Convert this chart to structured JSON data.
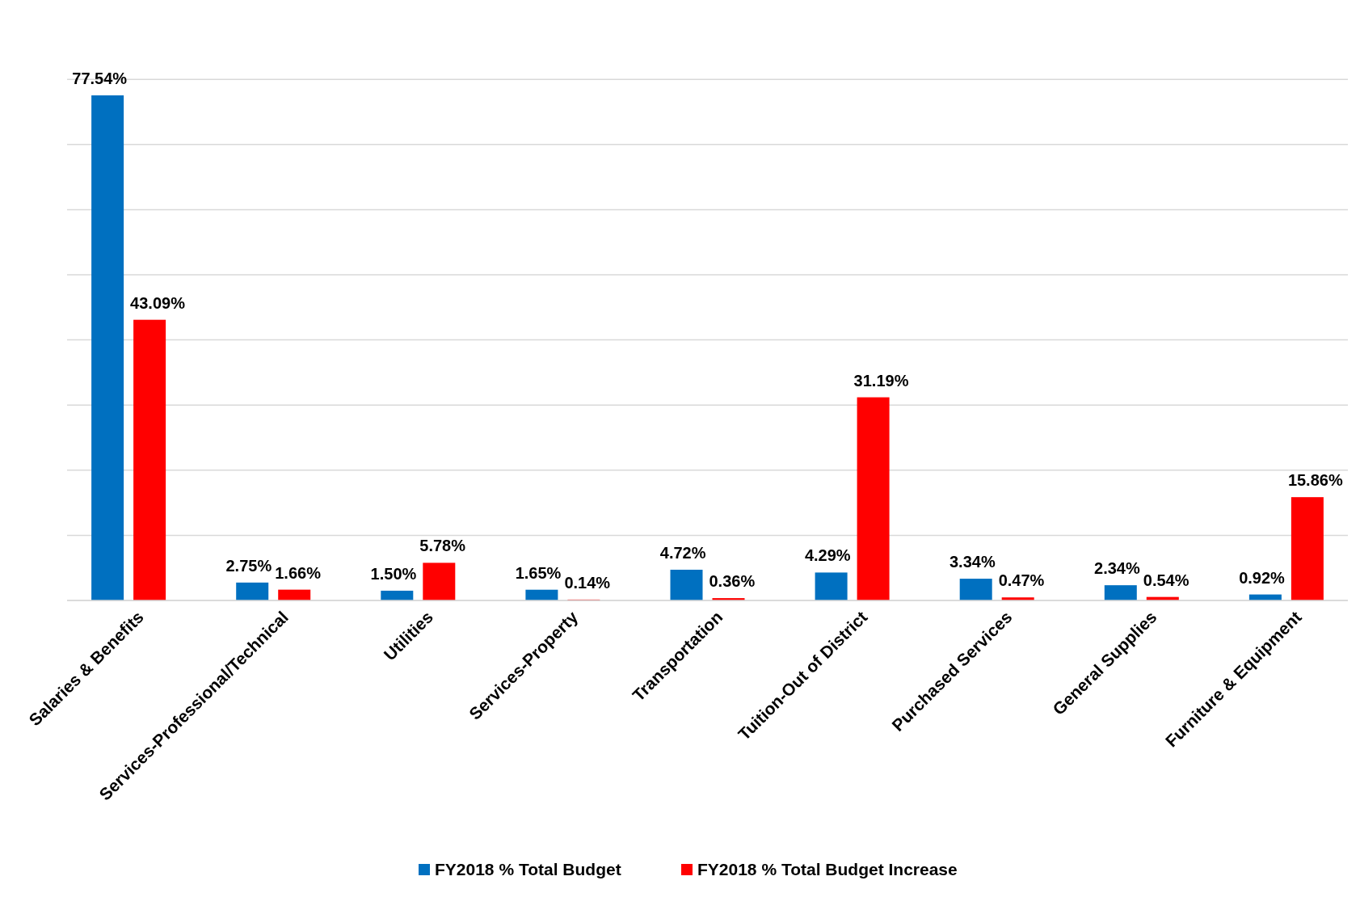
{
  "chart_data": {
    "type": "bar",
    "categories": [
      "Salaries & Benefits",
      "Services-Professional/Technical",
      "Utilities",
      "Services-Property",
      "Transportation",
      "Tuition-Out of District",
      "Purchased Services",
      "General Supplies",
      "Furniture & Equipment"
    ],
    "series": [
      {
        "name": "FY2018 % Total Budget",
        "color": "#0070c0",
        "values": [
          77.54,
          2.75,
          1.5,
          1.65,
          4.72,
          4.29,
          3.34,
          2.34,
          0.92
        ],
        "value_labels": [
          "77.54%",
          "2.75%",
          "1.50%",
          "1.65%",
          "4.72%",
          "4.29%",
          "3.34%",
          "2.34%",
          "0.92%"
        ]
      },
      {
        "name": "FY2018 % Total Budget Increase",
        "color": "#ff0000",
        "values": [
          43.09,
          1.66,
          5.78,
          0.14,
          0.36,
          31.19,
          0.47,
          0.54,
          15.86
        ],
        "value_labels": [
          "43.09%",
          "1.66%",
          "5.78%",
          "0.14%",
          "0.36%",
          "31.19%",
          "0.47%",
          "0.54%",
          "15.86%"
        ]
      }
    ],
    "tick_labels": "x",
    "grid": "y",
    "legend": "bottom"
  }
}
